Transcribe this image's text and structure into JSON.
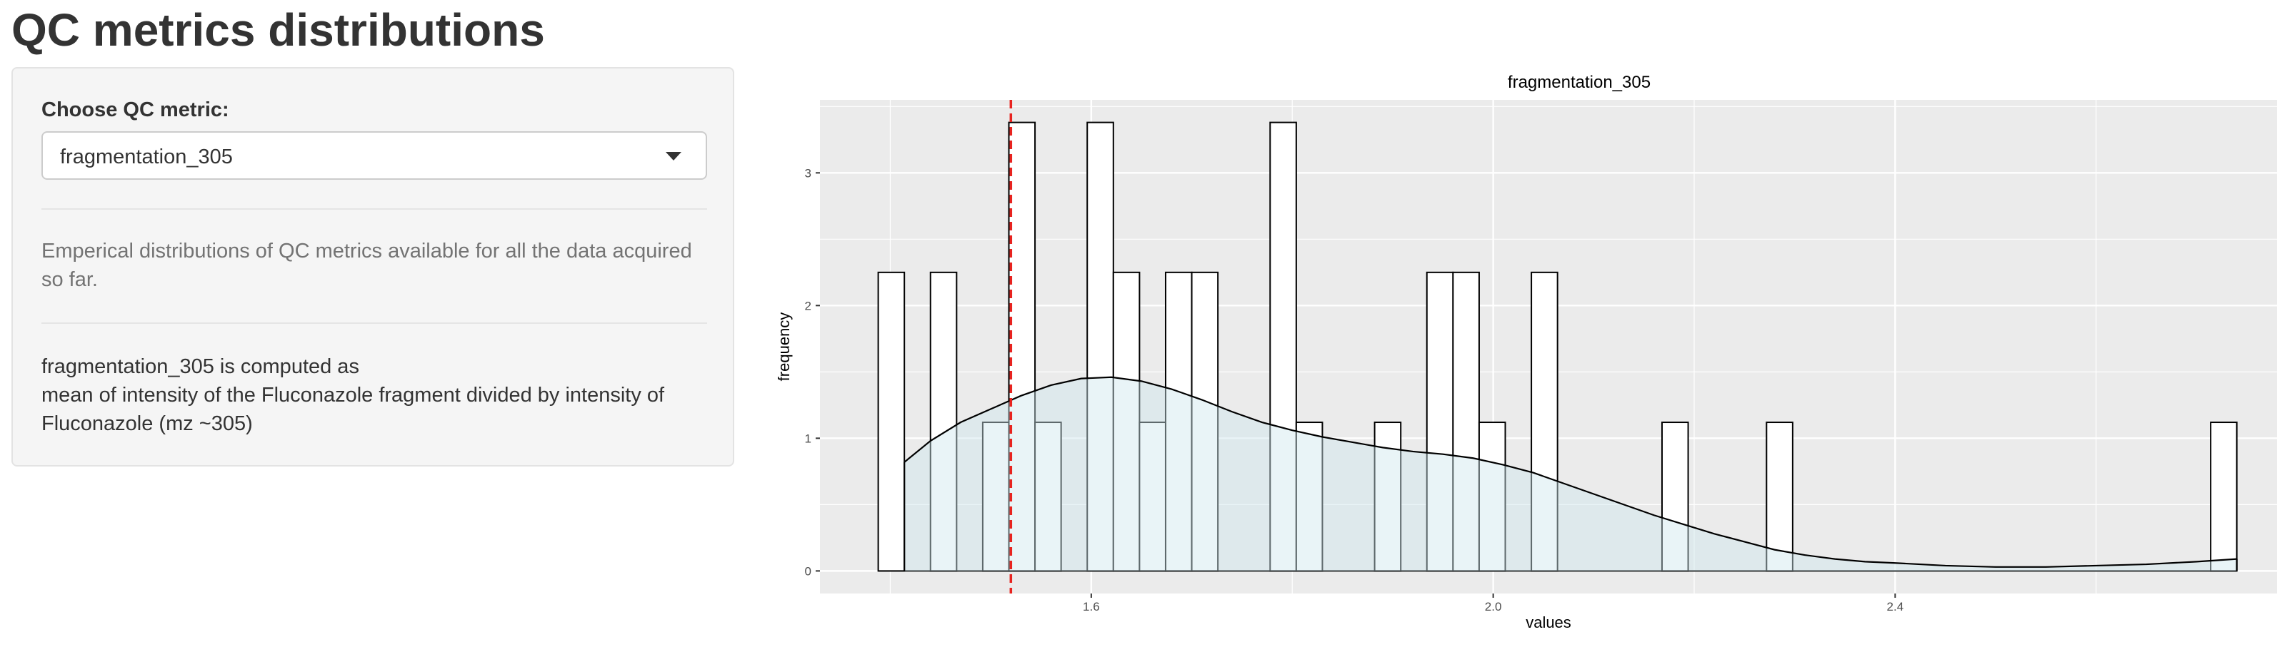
{
  "page": {
    "title": "QC metrics distributions"
  },
  "sidebar": {
    "select_label": "Choose QC metric:",
    "selected_metric": "fragmentation_305",
    "help_text": "Emperical distributions of QC metrics available for all the data acquired so far.",
    "definition_line1": "fragmentation_305 is computed as",
    "definition_line2": "mean of intensity of the Fluconazole fragment divided by intensity of Fluconazole (mz ~305)"
  },
  "colors": {
    "panel_bg": "#ebebeb",
    "grid": "#ffffff",
    "bar_fill": "#ffffff",
    "bar_stroke": "#000000",
    "density_fill": "#cfe6ee",
    "vline": "#e8231f"
  },
  "chart_data": {
    "type": "histogram",
    "title": "fragmentation_305",
    "xlabel": "values",
    "ylabel": "frequency",
    "xlim": [
      1.33,
      2.78
    ],
    "ylim": [
      -0.17,
      3.55
    ],
    "x_ticks": [
      {
        "value": 1.6,
        "label": "1.6"
      },
      {
        "value": 2.0,
        "label": "2.0"
      },
      {
        "value": 2.4,
        "label": "2.4"
      }
    ],
    "y_ticks": [
      {
        "value": 0,
        "label": "0"
      },
      {
        "value": 1,
        "label": "1"
      },
      {
        "value": 2,
        "label": "2"
      },
      {
        "value": 3,
        "label": "3"
      }
    ],
    "bins": [
      {
        "x0": 1.388,
        "x1": 1.414,
        "count": 2.25
      },
      {
        "x0": 1.414,
        "x1": 1.44,
        "count": 0
      },
      {
        "x0": 1.44,
        "x1": 1.466,
        "count": 2.25
      },
      {
        "x0": 1.466,
        "x1": 1.492,
        "count": 0
      },
      {
        "x0": 1.492,
        "x1": 1.518,
        "count": 1.12
      },
      {
        "x0": 1.518,
        "x1": 1.544,
        "count": 3.38
      },
      {
        "x0": 1.544,
        "x1": 1.57,
        "count": 1.12
      },
      {
        "x0": 1.57,
        "x1": 1.596,
        "count": 0
      },
      {
        "x0": 1.596,
        "x1": 1.622,
        "count": 3.38
      },
      {
        "x0": 1.622,
        "x1": 1.648,
        "count": 2.25
      },
      {
        "x0": 1.648,
        "x1": 1.674,
        "count": 1.12
      },
      {
        "x0": 1.674,
        "x1": 1.7,
        "count": 2.25
      },
      {
        "x0": 1.7,
        "x1": 1.726,
        "count": 2.25
      },
      {
        "x0": 1.726,
        "x1": 1.752,
        "count": 0
      },
      {
        "x0": 1.752,
        "x1": 1.778,
        "count": 0
      },
      {
        "x0": 1.778,
        "x1": 1.804,
        "count": 3.38
      },
      {
        "x0": 1.804,
        "x1": 1.83,
        "count": 1.12
      },
      {
        "x0": 1.83,
        "x1": 1.856,
        "count": 0
      },
      {
        "x0": 1.856,
        "x1": 1.882,
        "count": 0
      },
      {
        "x0": 1.882,
        "x1": 1.908,
        "count": 1.12
      },
      {
        "x0": 1.908,
        "x1": 1.934,
        "count": 0
      },
      {
        "x0": 1.934,
        "x1": 1.96,
        "count": 2.25
      },
      {
        "x0": 1.96,
        "x1": 1.986,
        "count": 2.25
      },
      {
        "x0": 1.986,
        "x1": 2.012,
        "count": 1.12
      },
      {
        "x0": 2.012,
        "x1": 2.038,
        "count": 0
      },
      {
        "x0": 2.038,
        "x1": 2.064,
        "count": 2.25
      },
      {
        "x0": 2.064,
        "x1": 2.09,
        "count": 0
      },
      {
        "x0": 2.09,
        "x1": 2.116,
        "count": 0
      },
      {
        "x0": 2.116,
        "x1": 2.142,
        "count": 0
      },
      {
        "x0": 2.142,
        "x1": 2.168,
        "count": 0
      },
      {
        "x0": 2.168,
        "x1": 2.194,
        "count": 1.12
      },
      {
        "x0": 2.194,
        "x1": 2.22,
        "count": 0
      },
      {
        "x0": 2.22,
        "x1": 2.246,
        "count": 0
      },
      {
        "x0": 2.246,
        "x1": 2.272,
        "count": 0
      },
      {
        "x0": 2.272,
        "x1": 2.298,
        "count": 1.12
      },
      {
        "x0": 2.298,
        "x1": 2.324,
        "count": 0
      },
      {
        "x0": 2.324,
        "x1": 2.35,
        "count": 0
      },
      {
        "x0": 2.35,
        "x1": 2.376,
        "count": 0
      },
      {
        "x0": 2.376,
        "x1": 2.402,
        "count": 0
      },
      {
        "x0": 2.402,
        "x1": 2.428,
        "count": 0
      },
      {
        "x0": 2.428,
        "x1": 2.454,
        "count": 0
      },
      {
        "x0": 2.454,
        "x1": 2.48,
        "count": 0
      },
      {
        "x0": 2.48,
        "x1": 2.506,
        "count": 0
      },
      {
        "x0": 2.506,
        "x1": 2.532,
        "count": 0
      },
      {
        "x0": 2.532,
        "x1": 2.558,
        "count": 0
      },
      {
        "x0": 2.558,
        "x1": 2.584,
        "count": 0
      },
      {
        "x0": 2.584,
        "x1": 2.61,
        "count": 0
      },
      {
        "x0": 2.61,
        "x1": 2.636,
        "count": 0
      },
      {
        "x0": 2.636,
        "x1": 2.662,
        "count": 0
      },
      {
        "x0": 2.662,
        "x1": 2.688,
        "count": 0
      },
      {
        "x0": 2.688,
        "x1": 2.714,
        "count": 0
      },
      {
        "x0": 2.714,
        "x1": 2.74,
        "count": 1.12
      }
    ],
    "density": [
      [
        1.414,
        0.82
      ],
      [
        1.44,
        0.98
      ],
      [
        1.47,
        1.12
      ],
      [
        1.5,
        1.22
      ],
      [
        1.53,
        1.32
      ],
      [
        1.56,
        1.4
      ],
      [
        1.59,
        1.45
      ],
      [
        1.62,
        1.46
      ],
      [
        1.65,
        1.43
      ],
      [
        1.68,
        1.37
      ],
      [
        1.71,
        1.29
      ],
      [
        1.74,
        1.2
      ],
      [
        1.77,
        1.12
      ],
      [
        1.8,
        1.06
      ],
      [
        1.83,
        1.01
      ],
      [
        1.86,
        0.97
      ],
      [
        1.89,
        0.93
      ],
      [
        1.92,
        0.9
      ],
      [
        1.95,
        0.88
      ],
      [
        1.98,
        0.85
      ],
      [
        2.01,
        0.8
      ],
      [
        2.04,
        0.74
      ],
      [
        2.07,
        0.66
      ],
      [
        2.1,
        0.58
      ],
      [
        2.13,
        0.5
      ],
      [
        2.16,
        0.42
      ],
      [
        2.19,
        0.35
      ],
      [
        2.22,
        0.28
      ],
      [
        2.25,
        0.22
      ],
      [
        2.28,
        0.16
      ],
      [
        2.31,
        0.12
      ],
      [
        2.34,
        0.09
      ],
      [
        2.37,
        0.07
      ],
      [
        2.4,
        0.06
      ],
      [
        2.45,
        0.04
      ],
      [
        2.5,
        0.03
      ],
      [
        2.55,
        0.03
      ],
      [
        2.6,
        0.04
      ],
      [
        2.65,
        0.05
      ],
      [
        2.7,
        0.07
      ],
      [
        2.74,
        0.09
      ]
    ],
    "vline_x": 1.52
  }
}
